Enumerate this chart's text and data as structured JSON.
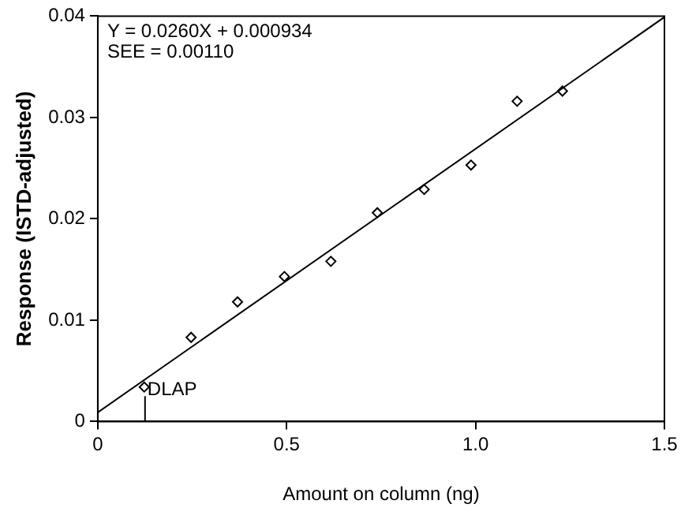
{
  "chart_data": {
    "type": "scatter",
    "xlabel": "Amount on column (ng)",
    "ylabel": "Response (ISTD-adjusted)",
    "xlim": [
      0,
      1.5
    ],
    "xticks": [
      0,
      0.5,
      {
        "value": 1,
        "label": "1.0"
      },
      1.5
    ],
    "ylim": [
      0,
      0.04
    ],
    "yticks": [
      0,
      0.01,
      0.02,
      0.03,
      0.04
    ],
    "grid": false,
    "legend": false,
    "series": [
      {
        "marker": "diamond",
        "color": "#000000",
        "x": [
          0.123,
          0.247,
          0.37,
          0.494,
          0.617,
          0.74,
          0.864,
          0.988,
          1.11,
          1.23
        ],
        "values": [
          0.0034,
          0.0083,
          0.0118,
          0.0143,
          0.0158,
          0.0206,
          0.0229,
          0.0253,
          0.0316,
          0.0326
        ]
      },
      {
        "type": "line",
        "color": "#000000",
        "x": [
          0,
          1.5
        ],
        "marker": "none",
        "values": [
          0.0009,
          0.0399
        ]
      }
    ],
    "annotations": [
      "Y = 0.0260X + 0.000934",
      "SEE = 0.00110",
      {
        "text": "DLAP",
        "x": 0.123,
        "y": 0.0025
      }
    ]
  }
}
